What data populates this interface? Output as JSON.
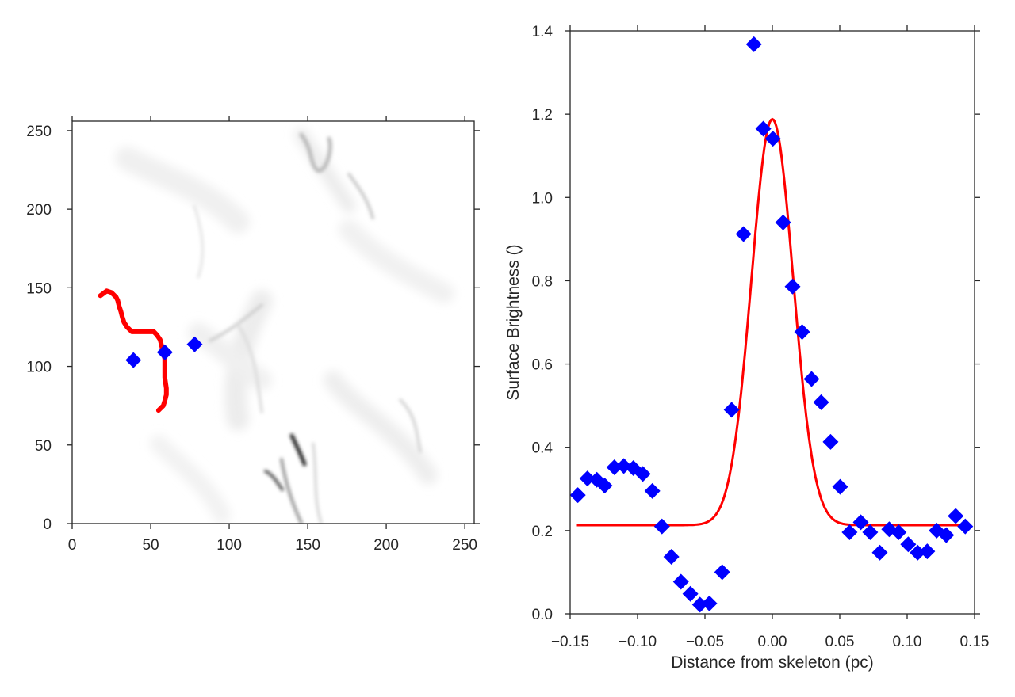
{
  "chart_data": [
    {
      "type": "heatmap",
      "title": "",
      "xlabel": "",
      "ylabel": "",
      "xlim": [
        0,
        256
      ],
      "ylim": [
        0,
        256
      ],
      "xticks": [
        0,
        50,
        100,
        150,
        200,
        250
      ],
      "yticks": [
        0,
        50,
        100,
        150,
        200,
        250
      ],
      "xtick_labels": [
        "0",
        "50",
        "100",
        "150",
        "200",
        "250"
      ],
      "ytick_labels": [
        "0",
        "50",
        "100",
        "150",
        "200",
        "250"
      ],
      "colormap": "grayscale, white = low, black = high",
      "skeleton": {
        "color": "#ff0000",
        "x": [
          18,
          22,
          25,
          28,
          29,
          30,
          31,
          32,
          33,
          35,
          38,
          40,
          45,
          52,
          54,
          56,
          57,
          58,
          59,
          59,
          59,
          60,
          60,
          59,
          58,
          56,
          55
        ],
        "y": [
          145,
          148,
          147,
          144,
          142,
          138,
          135,
          131,
          128,
          125,
          122,
          122,
          122,
          122,
          120,
          117,
          113,
          108,
          105,
          100,
          93,
          86,
          82,
          78,
          75,
          73,
          72
        ]
      },
      "markers": {
        "color": "#0000ff",
        "shape": "diamond",
        "x": [
          39,
          59,
          78
        ],
        "y": [
          104,
          109,
          114
        ]
      }
    },
    {
      "type": "scatter",
      "title": "",
      "xlabel": "Distance from skeleton (pc)",
      "ylabel": "Surface Brightness ()",
      "xlim": [
        -0.15,
        0.15
      ],
      "ylim": [
        0.0,
        1.4
      ],
      "xticks": [
        -0.15,
        -0.1,
        -0.05,
        0.0,
        0.05,
        0.1,
        0.15
      ],
      "yticks": [
        0.0,
        0.2,
        0.4,
        0.6,
        0.8,
        1.0,
        1.2,
        1.4
      ],
      "xtick_labels": [
        "−0.15",
        "−0.10",
        "−0.05",
        "0.00",
        "0.05",
        "0.10",
        "0.15"
      ],
      "ytick_labels": [
        "0.0",
        "0.2",
        "0.4",
        "0.6",
        "0.8",
        "1.0",
        "1.2",
        "1.4"
      ],
      "grid": false,
      "legend": "none",
      "series": [
        {
          "kind": "scatter",
          "marker": "diamond",
          "color": "#0000ff",
          "x": [
            -0.1443,
            -0.1372,
            -0.1302,
            -0.1244,
            -0.1172,
            -0.1102,
            -0.1031,
            -0.0961,
            -0.089,
            -0.0819,
            -0.0749,
            -0.0678,
            -0.0608,
            -0.0537,
            -0.0467,
            -0.0372,
            -0.0302,
            -0.0214,
            -0.0137,
            -0.0067,
            0.0004,
            0.008,
            0.015,
            0.0221,
            0.0291,
            0.0362,
            0.0432,
            0.0503,
            0.0573,
            0.0656,
            0.0726,
            0.0797,
            0.0867,
            0.0937,
            0.1008,
            0.1078,
            0.1149,
            0.1219,
            0.129,
            0.136,
            0.1431
          ],
          "y": [
            0.285,
            0.325,
            0.322,
            0.308,
            0.352,
            0.355,
            0.35,
            0.336,
            0.295,
            0.21,
            0.137,
            0.077,
            0.048,
            0.022,
            0.025,
            0.1,
            0.49,
            0.912,
            1.368,
            1.165,
            1.141,
            0.94,
            0.786,
            0.677,
            0.564,
            0.508,
            0.413,
            0.305,
            0.196,
            0.22,
            0.196,
            0.147,
            0.203,
            0.196,
            0.167,
            0.147,
            0.15,
            0.2,
            0.189,
            0.235,
            0.21
          ]
        },
        {
          "kind": "line",
          "color": "#ff0000",
          "model": "gaussian",
          "amplitude": 0.975,
          "mean": 0.0,
          "sigma": 0.0155,
          "offset": 0.213,
          "x_range": [
            -0.145,
            0.145
          ]
        }
      ]
    }
  ]
}
